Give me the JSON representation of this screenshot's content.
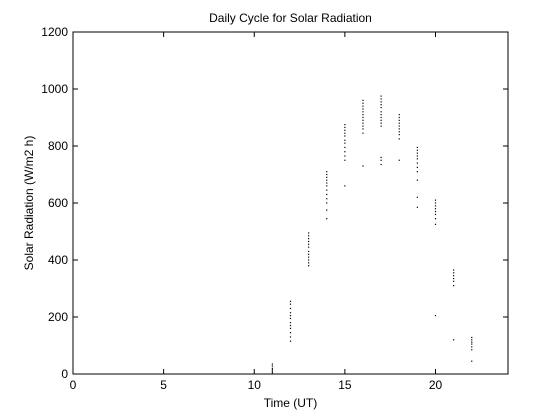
{
  "chart_data": {
    "type": "scatter",
    "title": "Daily Cycle for Solar Radiation",
    "xlabel": "Time (UT)",
    "ylabel": "Solar Radiation (W/m2 h)",
    "xlim": [
      0,
      24
    ],
    "ylim": [
      0,
      1200
    ],
    "xticks": [
      0,
      5,
      10,
      15,
      20
    ],
    "yticks": [
      0,
      200,
      400,
      600,
      800,
      1000,
      1200
    ],
    "grid": false,
    "marker_color": "#000000",
    "clusters": [
      {
        "x": 11,
        "y": [
          0,
          5,
          10,
          15,
          20,
          28,
          35
        ]
      },
      {
        "x": 12,
        "y": [
          115,
          130,
          145,
          160,
          170,
          180,
          195,
          205,
          215,
          230,
          245,
          255
        ]
      },
      {
        "x": 13,
        "y": [
          380,
          390,
          400,
          410,
          420,
          430,
          445,
          455,
          465,
          475,
          485,
          495
        ]
      },
      {
        "x": 14,
        "y": [
          545,
          575,
          600,
          615,
          630,
          645,
          660,
          670,
          680,
          690,
          700,
          710
        ]
      },
      {
        "x": 15,
        "y": [
          660,
          750,
          765,
          780,
          795,
          810,
          820,
          835,
          845,
          855,
          865,
          875
        ]
      },
      {
        "x": 16,
        "y": [
          730,
          845,
          860,
          870,
          880,
          890,
          900,
          910,
          920,
          930,
          940,
          950,
          960
        ]
      },
      {
        "x": 17,
        "y": [
          735,
          750,
          760,
          870,
          880,
          890,
          900,
          910,
          920,
          935,
          945,
          955,
          965,
          975
        ]
      },
      {
        "x": 18,
        "y": [
          750,
          825,
          840,
          850,
          860,
          870,
          880,
          890,
          900,
          910
        ]
      },
      {
        "x": 19,
        "y": [
          585,
          620,
          680,
          710,
          725,
          740,
          755,
          765,
          775,
          785,
          795
        ]
      },
      {
        "x": 20,
        "y": [
          205,
          525,
          545,
          560,
          570,
          580,
          590,
          600,
          610
        ]
      },
      {
        "x": 21,
        "y": [
          120,
          310,
          325,
          335,
          345,
          355,
          365
        ]
      },
      {
        "x": 22,
        "y": [
          45,
          85,
          95,
          105,
          112,
          120,
          128
        ]
      }
    ]
  }
}
